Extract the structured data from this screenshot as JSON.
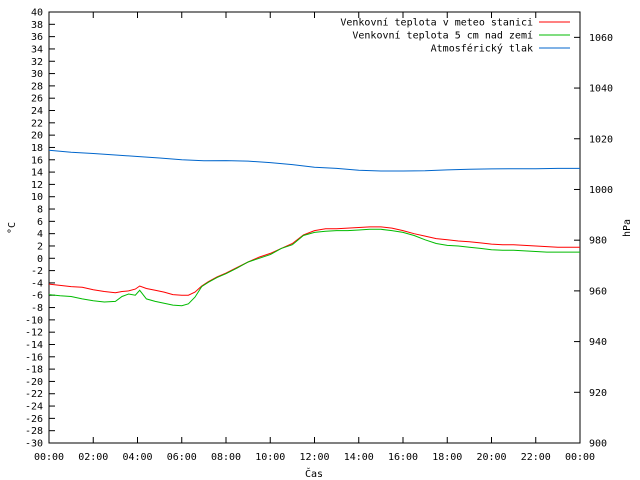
{
  "chart_data": {
    "type": "line",
    "xlabel": "Čas",
    "ylabel": "°C",
    "y2label": "hPa",
    "ylim": [
      -30,
      40
    ],
    "y2lim": [
      900,
      1070
    ],
    "xlim": [
      0,
      24
    ],
    "grid": false,
    "legend_position": "top-right",
    "x_ticks": [
      "00:00",
      "02:00",
      "04:00",
      "06:00",
      "08:00",
      "10:00",
      "12:00",
      "14:00",
      "16:00",
      "18:00",
      "20:00",
      "22:00",
      "00:00"
    ],
    "y_ticks": [
      40,
      38,
      36,
      34,
      32,
      30,
      28,
      26,
      24,
      22,
      20,
      18,
      16,
      14,
      12,
      10,
      8,
      6,
      4,
      2,
      0,
      -2,
      -4,
      -6,
      -8,
      -10,
      -12,
      -14,
      -16,
      -18,
      -20,
      -22,
      -24,
      -26,
      -28,
      -30
    ],
    "y2_ticks": [
      1060,
      1040,
      1020,
      1000,
      980,
      960,
      940,
      920,
      900
    ],
    "series": [
      {
        "name": "Venkovní teplota v meteo stanici",
        "axis": "left",
        "color": "#ff0000",
        "x": [
          0,
          0.5,
          1,
          1.5,
          2,
          2.5,
          3,
          3.3,
          3.6,
          3.9,
          4.1,
          4.4,
          4.8,
          5.2,
          5.6,
          6,
          6.3,
          6.6,
          6.9,
          7.2,
          7.6,
          8,
          8.5,
          9,
          9.5,
          10,
          10.5,
          11,
          11.5,
          12,
          12.5,
          13,
          13.5,
          14,
          14.5,
          15,
          15.5,
          16,
          16.5,
          17,
          17.5,
          18,
          18.5,
          19,
          19.5,
          20,
          20.5,
          21,
          21.5,
          22,
          22.5,
          23,
          23.5,
          24
        ],
        "values": [
          -4.2,
          -4.4,
          -4.6,
          -4.7,
          -5.1,
          -5.4,
          -5.6,
          -5.4,
          -5.3,
          -5.0,
          -4.5,
          -4.9,
          -5.2,
          -5.5,
          -5.9,
          -6.0,
          -6.0,
          -5.5,
          -4.5,
          -3.8,
          -3.0,
          -2.4,
          -1.5,
          -0.6,
          0.2,
          0.8,
          1.6,
          2.4,
          3.8,
          4.5,
          4.8,
          4.8,
          4.9,
          5.0,
          5.1,
          5.1,
          4.9,
          4.5,
          4.0,
          3.6,
          3.2,
          3.0,
          2.8,
          2.7,
          2.5,
          2.3,
          2.2,
          2.2,
          2.1,
          2.0,
          1.9,
          1.8,
          1.8,
          1.8
        ]
      },
      {
        "name": "Venkovní teplota 5 cm nad zemí",
        "axis": "left",
        "color": "#00bb00",
        "x": [
          0,
          0.5,
          1,
          1.5,
          2,
          2.5,
          3,
          3.3,
          3.6,
          3.9,
          4.1,
          4.4,
          4.8,
          5.2,
          5.6,
          6,
          6.3,
          6.6,
          6.9,
          7.2,
          7.6,
          8,
          8.5,
          9,
          9.5,
          10,
          10.5,
          11,
          11.5,
          12,
          12.5,
          13,
          13.5,
          14,
          14.5,
          15,
          15.5,
          16,
          16.5,
          17,
          17.5,
          18,
          18.5,
          19,
          19.5,
          20,
          20.5,
          21,
          21.5,
          22,
          22.5,
          23,
          23.5,
          24
        ],
        "values": [
          -5.9,
          -6.1,
          -6.2,
          -6.6,
          -6.9,
          -7.1,
          -7.0,
          -6.2,
          -5.8,
          -6.0,
          -5.2,
          -6.6,
          -7.0,
          -7.3,
          -7.6,
          -7.7,
          -7.4,
          -6.3,
          -4.6,
          -3.9,
          -3.1,
          -2.5,
          -1.6,
          -0.6,
          0.0,
          0.6,
          1.6,
          2.2,
          3.7,
          4.2,
          4.4,
          4.5,
          4.5,
          4.6,
          4.7,
          4.7,
          4.5,
          4.2,
          3.7,
          3.0,
          2.4,
          2.1,
          2.0,
          1.8,
          1.6,
          1.4,
          1.3,
          1.3,
          1.2,
          1.1,
          1.0,
          1.0,
          1.0,
          1.0
        ]
      },
      {
        "name": "Atmosférický tlak",
        "axis": "right",
        "color": "#0066cc",
        "x": [
          0,
          1,
          2,
          3,
          4,
          5,
          6,
          7,
          8,
          9,
          10,
          11,
          12,
          13,
          14,
          15,
          16,
          17,
          18,
          19,
          20,
          21,
          22,
          23,
          24
        ],
        "values": [
          1015.5,
          1014.7,
          1014.2,
          1013.6,
          1013.0,
          1012.4,
          1011.7,
          1011.3,
          1011.4,
          1011.2,
          1010.6,
          1009.8,
          1008.8,
          1008.3,
          1007.6,
          1007.3,
          1007.3,
          1007.4,
          1007.7,
          1008.0,
          1008.1,
          1008.2,
          1008.2,
          1008.3,
          1008.3
        ]
      }
    ]
  }
}
